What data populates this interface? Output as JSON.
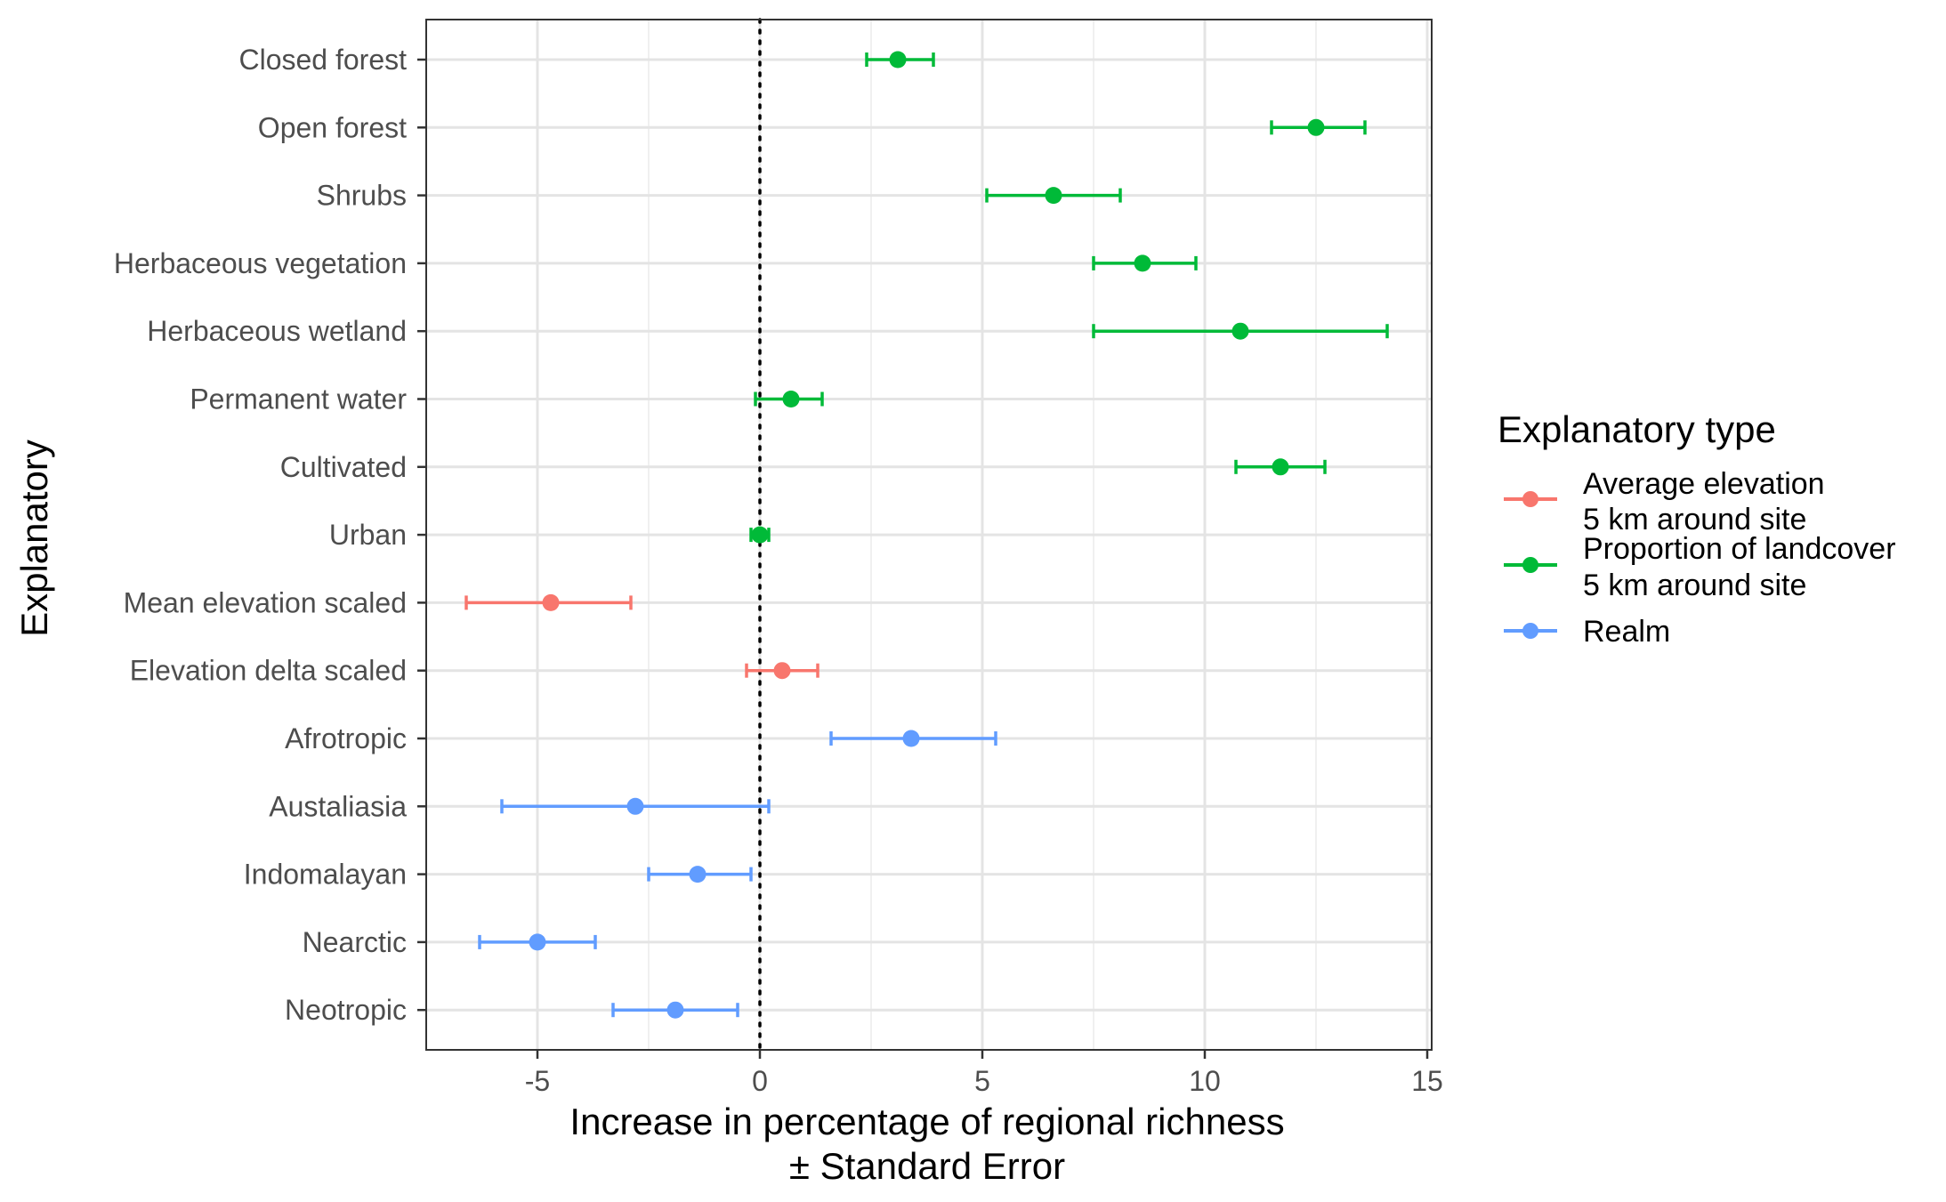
{
  "chart_data": {
    "type": "scatter",
    "xlabel": "Increase in percentage of regional richness",
    "xlabel_line2": "± Standard Error",
    "ylabel": "Explanatory",
    "xlim": [
      -7.5,
      15.1
    ],
    "x_ticks": [
      -5,
      0,
      5,
      10,
      15
    ],
    "x_tick_labels": [
      "-5",
      "0",
      "5",
      "10",
      "15"
    ],
    "reference_line_x": 0,
    "grid": true,
    "legend": {
      "title": "Explanatory type",
      "placement": "right",
      "entries": [
        {
          "key": "elev",
          "line1": "Average elevation",
          "line2": "5 km around site",
          "color": "#F8766D"
        },
        {
          "key": "land",
          "line1": "Proportion of landcover",
          "line2": "5 km around site",
          "color": "#00BA38"
        },
        {
          "key": "realm",
          "line1": "Realm",
          "line2": "",
          "color": "#619CFF"
        }
      ]
    },
    "points": [
      {
        "label": "Closed forest",
        "type": "land",
        "estimate": 3.1,
        "lower": 2.4,
        "upper": 3.9
      },
      {
        "label": "Open forest",
        "type": "land",
        "estimate": 12.5,
        "lower": 11.5,
        "upper": 13.6
      },
      {
        "label": "Shrubs",
        "type": "land",
        "estimate": 6.6,
        "lower": 5.1,
        "upper": 8.1
      },
      {
        "label": "Herbaceous vegetation",
        "type": "land",
        "estimate": 8.6,
        "lower": 7.5,
        "upper": 9.8
      },
      {
        "label": "Herbaceous wetland",
        "type": "land",
        "estimate": 10.8,
        "lower": 7.5,
        "upper": 14.1
      },
      {
        "label": "Permanent water",
        "type": "land",
        "estimate": 0.7,
        "lower": -0.1,
        "upper": 1.4
      },
      {
        "label": "Cultivated",
        "type": "land",
        "estimate": 11.7,
        "lower": 10.7,
        "upper": 12.7
      },
      {
        "label": "Urban",
        "type": "land",
        "estimate": 0.0,
        "lower": -0.2,
        "upper": 0.2
      },
      {
        "label": "Mean elevation scaled",
        "type": "elev",
        "estimate": -4.7,
        "lower": -6.6,
        "upper": -2.9
      },
      {
        "label": "Elevation delta scaled",
        "type": "elev",
        "estimate": 0.5,
        "lower": -0.3,
        "upper": 1.3
      },
      {
        "label": "Afrotropic",
        "type": "realm",
        "estimate": 3.4,
        "lower": 1.6,
        "upper": 5.3
      },
      {
        "label": "Austaliasia",
        "type": "realm",
        "estimate": -2.8,
        "lower": -5.8,
        "upper": 0.2
      },
      {
        "label": "Indomalayan",
        "type": "realm",
        "estimate": -1.4,
        "lower": -2.5,
        "upper": -0.2
      },
      {
        "label": "Nearctic",
        "type": "realm",
        "estimate": -5.0,
        "lower": -6.3,
        "upper": -3.7
      },
      {
        "label": "Neotropic",
        "type": "realm",
        "estimate": -1.9,
        "lower": -3.3,
        "upper": -0.5
      }
    ]
  }
}
